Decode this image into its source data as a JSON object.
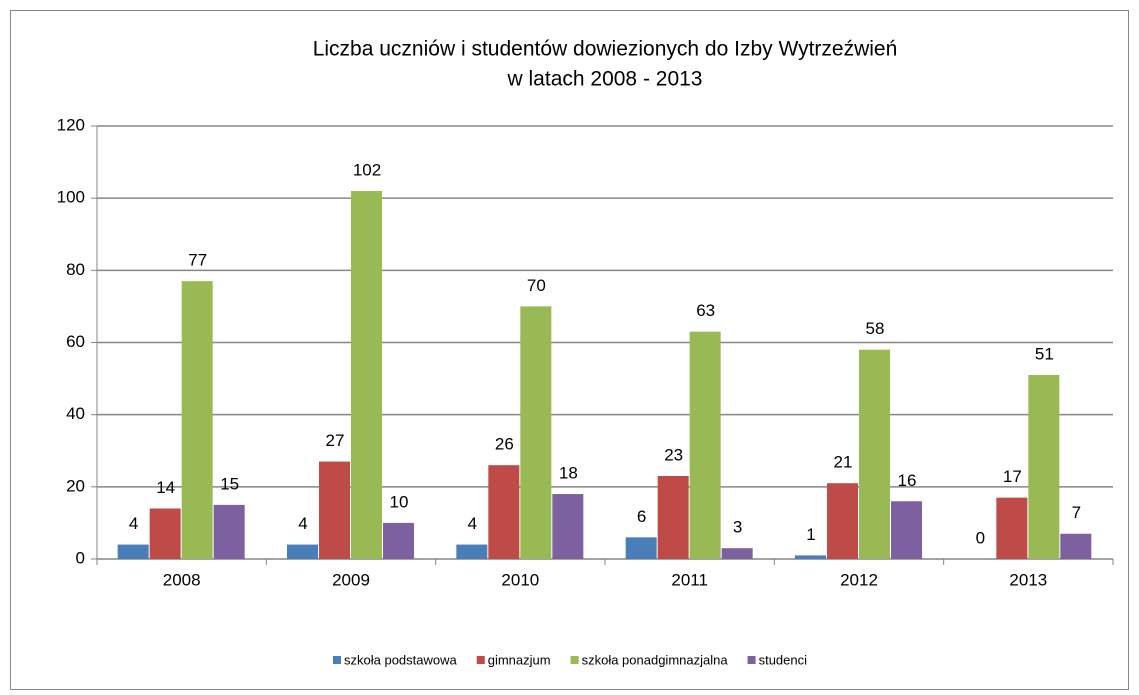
{
  "chart_data": {
    "type": "bar",
    "title": [
      "Liczba uczniów i studentów dowiezionych do Izby Wytrzeźwień",
      "w latach 2008 - 2013"
    ],
    "categories": [
      "2008",
      "2009",
      "2010",
      "2011",
      "2012",
      "2013"
    ],
    "series": [
      {
        "name": "szkoła podstawowa",
        "color": "#4a7ebb",
        "values": [
          4,
          4,
          4,
          6,
          1,
          0
        ]
      },
      {
        "name": "gimnazjum",
        "color": "#be4b48",
        "values": [
          14,
          27,
          26,
          23,
          21,
          17
        ]
      },
      {
        "name": "szkoła ponadgimnazjalna",
        "color": "#98b954",
        "values": [
          77,
          102,
          70,
          63,
          58,
          51
        ]
      },
      {
        "name": "studenci",
        "color": "#7d60a0",
        "values": [
          15,
          10,
          18,
          3,
          16,
          7
        ]
      }
    ],
    "ylim": [
      0,
      120
    ],
    "yticks": [
      0,
      20,
      40,
      60,
      80,
      100,
      120
    ],
    "grid": true,
    "legend": "bottom"
  }
}
